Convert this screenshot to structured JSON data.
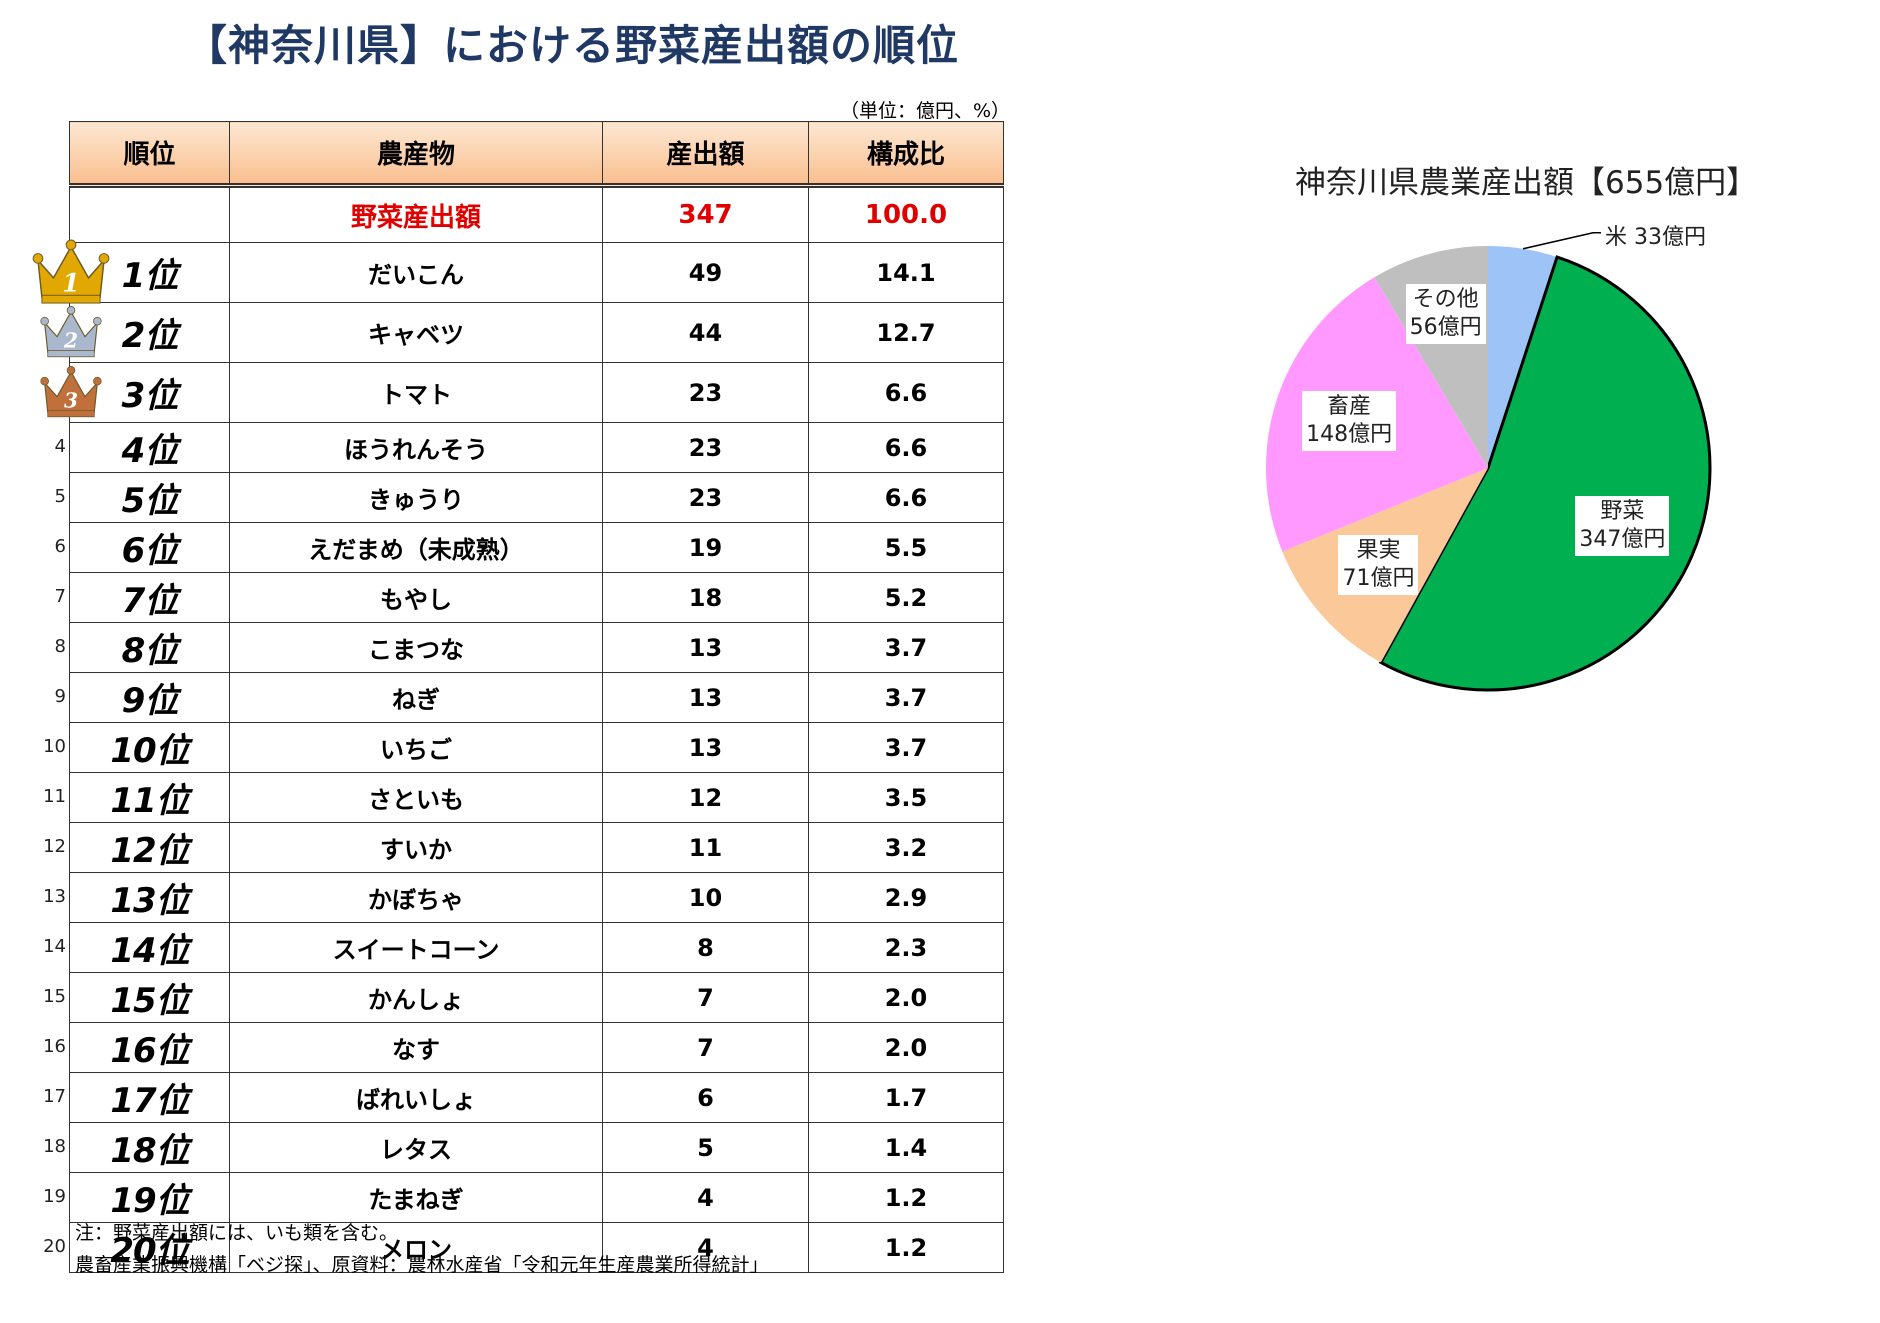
{
  "title": "【神奈川県】における野菜産出額の順位",
  "unit_note": "（単位：億円、%）",
  "table": {
    "headers": [
      "順位",
      "農産物",
      "産出額",
      "構成比"
    ],
    "total": {
      "name": "野菜産出額",
      "value": "347",
      "ratio": "100.0"
    },
    "rows": [
      {
        "num": "",
        "rank": "1位",
        "name": "だいこん",
        "value": "49",
        "ratio": "14.1"
      },
      {
        "num": "",
        "rank": "2位",
        "name": "キャベツ",
        "value": "44",
        "ratio": "12.7"
      },
      {
        "num": "",
        "rank": "3位",
        "name": "トマト",
        "value": "23",
        "ratio": "6.6"
      },
      {
        "num": "4",
        "rank": "4位",
        "name": "ほうれんそう",
        "value": "23",
        "ratio": "6.6"
      },
      {
        "num": "5",
        "rank": "5位",
        "name": "きゅうり",
        "value": "23",
        "ratio": "6.6"
      },
      {
        "num": "6",
        "rank": "6位",
        "name": "えだまめ（未成熟）",
        "value": "19",
        "ratio": "5.5"
      },
      {
        "num": "7",
        "rank": "7位",
        "name": "もやし",
        "value": "18",
        "ratio": "5.2"
      },
      {
        "num": "8",
        "rank": "8位",
        "name": "こまつな",
        "value": "13",
        "ratio": "3.7"
      },
      {
        "num": "9",
        "rank": "9位",
        "name": "ねぎ",
        "value": "13",
        "ratio": "3.7"
      },
      {
        "num": "10",
        "rank": "10位",
        "name": "いちご",
        "value": "13",
        "ratio": "3.7"
      },
      {
        "num": "11",
        "rank": "11位",
        "name": "さといも",
        "value": "12",
        "ratio": "3.5"
      },
      {
        "num": "12",
        "rank": "12位",
        "name": "すいか",
        "value": "11",
        "ratio": "3.2"
      },
      {
        "num": "13",
        "rank": "13位",
        "name": "かぼちゃ",
        "value": "10",
        "ratio": "2.9"
      },
      {
        "num": "14",
        "rank": "14位",
        "name": "スイートコーン",
        "value": "8",
        "ratio": "2.3"
      },
      {
        "num": "15",
        "rank": "15位",
        "name": "かんしょ",
        "value": "7",
        "ratio": "2.0"
      },
      {
        "num": "16",
        "rank": "16位",
        "name": "なす",
        "value": "7",
        "ratio": "2.0"
      },
      {
        "num": "17",
        "rank": "17位",
        "name": "ばれいしょ",
        "value": "6",
        "ratio": "1.7"
      },
      {
        "num": "18",
        "rank": "18位",
        "name": "レタス",
        "value": "5",
        "ratio": "1.4"
      },
      {
        "num": "19",
        "rank": "19位",
        "name": "たまねぎ",
        "value": "4",
        "ratio": "1.2"
      },
      {
        "num": "20",
        "rank": "20位",
        "name": "メロン",
        "value": "4",
        "ratio": "1.2"
      }
    ]
  },
  "crowns": [
    {
      "label": "1",
      "color": "#e0a800"
    },
    {
      "label": "2",
      "color": "#a9b8cc"
    },
    {
      "label": "3",
      "color": "#c0703a"
    }
  ],
  "notes": {
    "note1": "注：野菜産出額には、いも類を含む。",
    "note2": "農畜産業振興機構「ベジ探」、原資料：農林水産省「令和元年生産農業所得統計」"
  },
  "chart_data": {
    "type": "pie",
    "title": "神奈川県農業産出額【655億円】",
    "total": 655,
    "slices": [
      {
        "name": "米",
        "value": 33,
        "label": "米 33億円",
        "color": "#9dc3f7"
      },
      {
        "name": "野菜",
        "value": 347,
        "label_line1": "野菜",
        "label_line2": "347億円",
        "color": "#00b050"
      },
      {
        "name": "果実",
        "value": 71,
        "label_line1": "果実",
        "label_line2": "71億円",
        "color": "#fbc89a"
      },
      {
        "name": "畜産",
        "value": 148,
        "label_line1": "畜産",
        "label_line2": "148億円",
        "color": "#ff99ff"
      },
      {
        "name": "その他",
        "value": 56,
        "label_line1": "その他",
        "label_line2": "56億円",
        "color": "#bfbfbf"
      }
    ]
  }
}
